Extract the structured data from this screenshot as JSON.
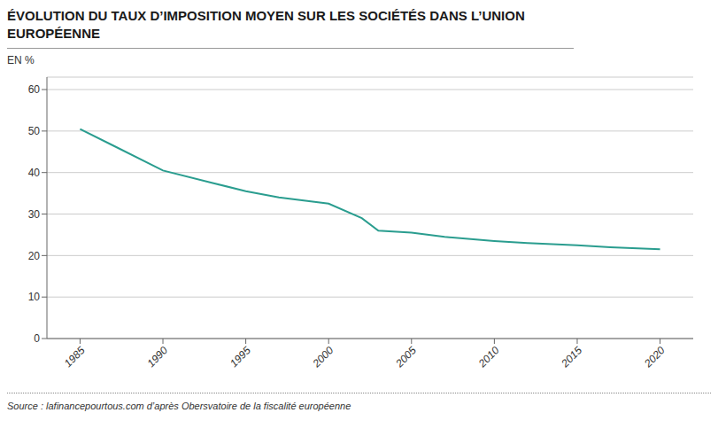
{
  "chart_data": {
    "type": "line",
    "title": "ÉVOLUTION DU TAUX D’IMPOSITION MOYEN SUR LES SOCIÉTÉS DANS L’UNION EUROPÉENNE",
    "ylabel": "EN %",
    "source": "Source : lafinancepourtous.com d’après Obersvatoire de la fiscalité européenne",
    "x": [
      1985,
      1987,
      1990,
      1993,
      1995,
      1997,
      2000,
      2002,
      2003,
      2005,
      2007,
      2010,
      2012,
      2015,
      2017,
      2020
    ],
    "values": [
      50.5,
      46.5,
      40.5,
      37.5,
      35.5,
      34.0,
      32.5,
      29.0,
      26.0,
      25.5,
      24.5,
      23.5,
      23.0,
      22.5,
      22.0,
      21.5
    ],
    "color": "#2a9d8f",
    "xlim": [
      1983,
      2022
    ],
    "xticks": [
      1985,
      1990,
      1995,
      2000,
      2005,
      2010,
      2015,
      2020
    ],
    "ylim": [
      0,
      63
    ],
    "yticks": [
      0,
      10,
      20,
      30,
      40,
      50,
      60
    ],
    "grid": true
  }
}
